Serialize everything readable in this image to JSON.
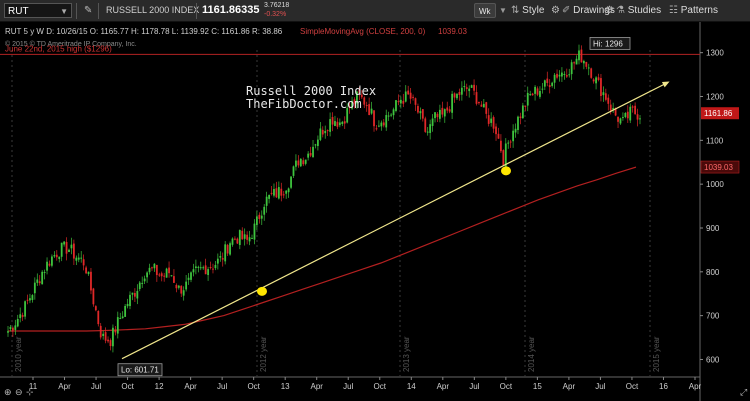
{
  "toolbar": {
    "symbol": "RUT",
    "edit_icon": "pencil-icon",
    "name": "RUSSELL 2000 INDEX",
    "price": "1161.86335",
    "change_abs": "3.76218",
    "change_pct": "-0.32%",
    "period_button": "Wk",
    "style_label": "Style",
    "drawings_label": "Drawings",
    "studies_label": "Studies",
    "patterns_label": "Patterns"
  },
  "header": {
    "quote_line": "RUT 5 y W  D: 10/26/15  O: 1165.77  H: 1178.78  L: 1139.92  C: 1161.86  R: 38.86",
    "study_label": "SimpleMovingAvg (CLOSE, 200, 0)",
    "study_value": "1039.03",
    "copyright": "© 2015 © TD Ameritrade IP Company, Inc."
  },
  "annotations": {
    "resistance_label": "June 22nd, 2015 high ($1296)",
    "chart_title_line1": "Russell 2000 Index",
    "chart_title_line2": "TheFibDoctor.com",
    "hi_label": "Hi: 1296",
    "lo_label": "Lo: 601.71"
  },
  "chart_data": {
    "type": "candlestick",
    "y_ticks": [
      600,
      700,
      800,
      900,
      1000,
      1100,
      1200,
      1300
    ],
    "ylim": [
      560,
      1370
    ],
    "price_badge": "1161.86",
    "sma_badge": "1039.03",
    "x_ticks": [
      "11",
      "Apr",
      "Jul",
      "Oct",
      "12",
      "Apr",
      "Jul",
      "Oct",
      "13",
      "Apr",
      "Jul",
      "Oct",
      "14",
      "Apr",
      "Jul",
      "Oct",
      "15",
      "Apr",
      "Jul",
      "Oct",
      "16",
      "Apr"
    ],
    "year_markers": [
      "2010 year",
      "2012 year",
      "2013 year",
      "2014 year",
      "2015 year"
    ],
    "resistance_level": 1296,
    "trendline": {
      "from": 601.71,
      "to": 1230
    },
    "hi": 1296,
    "lo": 601.71,
    "price_path": [
      665,
      690,
      720,
      760,
      800,
      830,
      850,
      855,
      835,
      820,
      735,
      650,
      645,
      690,
      730,
      760,
      800,
      805,
      790,
      800,
      760,
      770,
      800,
      810,
      815,
      830,
      870,
      880,
      870,
      905,
      960,
      975,
      985,
      1010,
      1055,
      1065,
      1100,
      1130,
      1150,
      1140,
      1175,
      1200,
      1185,
      1140,
      1150,
      1165,
      1195,
      1200,
      1165,
      1115,
      1150,
      1155,
      1190,
      1210,
      1220,
      1195,
      1155,
      1135,
      1060,
      1120,
      1160,
      1200,
      1215,
      1225,
      1250,
      1255,
      1270,
      1295,
      1270,
      1230,
      1200,
      1160,
      1140,
      1165,
      1160
    ],
    "sma_path": [
      665,
      665,
      665,
      665,
      665,
      666,
      668,
      670,
      675,
      680,
      690,
      700,
      715,
      730,
      745,
      760,
      775,
      790,
      805,
      820,
      838,
      856,
      874,
      892,
      910,
      928,
      946,
      964,
      980,
      996,
      1010,
      1025,
      1039
    ],
    "support_touches": [
      760,
      1035
    ],
    "colors": {
      "up": "#3ec43e",
      "down": "#e02828",
      "sma": "#b32020",
      "resistance": "#b22222",
      "trendline": "#f0e68c",
      "marker": "#ffe600",
      "price_badge": "#c01818"
    }
  }
}
